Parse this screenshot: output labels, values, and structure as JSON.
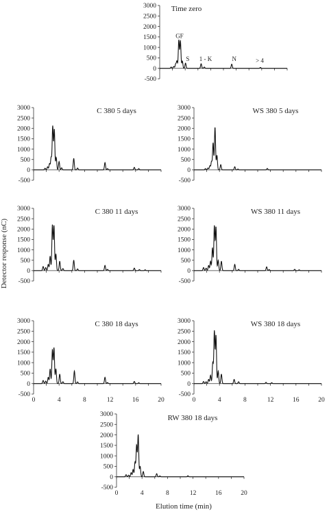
{
  "figure": {
    "y_axis_label": "Detector response (nC)",
    "x_axis_label": "Elution time (min)"
  },
  "chart_data": [
    {
      "type": "line",
      "title": "Time zero",
      "xlim": [
        0,
        20
      ],
      "ylim": [
        -500,
        3000
      ],
      "yticks": [
        -500,
        0,
        500,
        1000,
        1500,
        2000,
        2500,
        3000
      ],
      "xticks": [],
      "peak_labels": [
        {
          "text": "G",
          "x": 2.85,
          "y": 1450
        },
        {
          "text": "F",
          "x": 3.45,
          "y": 1450
        },
        {
          "text": "S",
          "x": 4.4,
          "y": 350
        },
        {
          "text": "1 - K",
          "x": 7.2,
          "y": 350
        },
        {
          "text": "N",
          "x": 11.7,
          "y": 350
        },
        {
          "text": "> 4",
          "x": 15.7,
          "y": 270
        }
      ],
      "series": [
        {
          "peaks": [
            [
              1.8,
              60
            ],
            [
              2.2,
              90
            ],
            [
              2.5,
              200
            ],
            [
              2.7,
              350
            ],
            [
              3.0,
              1350
            ],
            [
              3.25,
              1300
            ],
            [
              3.55,
              350
            ],
            [
              4.05,
              250
            ],
            [
              6.5,
              220
            ],
            [
              7.0,
              60
            ],
            [
              11.3,
              200
            ],
            [
              15.8,
              40
            ]
          ]
        }
      ]
    },
    {
      "type": "line",
      "title": "C 380 5 days",
      "xlim": [
        0,
        20
      ],
      "ylim": [
        -500,
        3000
      ],
      "yticks": [
        -500,
        0,
        500,
        1000,
        1500,
        2000,
        2500,
        3000
      ],
      "xticks": [],
      "series": [
        {
          "peaks": [
            [
              1.8,
              80
            ],
            [
              2.2,
              150
            ],
            [
              2.5,
              300
            ],
            [
              2.75,
              600
            ],
            [
              3.0,
              2100
            ],
            [
              3.25,
              1950
            ],
            [
              3.55,
              600
            ],
            [
              4.0,
              400
            ],
            [
              4.4,
              100
            ],
            [
              6.3,
              550
            ],
            [
              6.9,
              90
            ],
            [
              11.2,
              350
            ],
            [
              11.6,
              60
            ],
            [
              15.8,
              120
            ],
            [
              16.5,
              60
            ]
          ]
        }
      ]
    },
    {
      "type": "line",
      "title": "WS 380 5 days",
      "xlim": [
        0,
        20
      ],
      "ylim": [
        -500,
        3000
      ],
      "yticks": [
        -500,
        0,
        500,
        1000,
        1500,
        2000,
        2500,
        3000
      ],
      "xticks": [],
      "series": [
        {
          "peaks": [
            [
              1.8,
              60
            ],
            [
              2.2,
              90
            ],
            [
              2.5,
              200
            ],
            [
              2.75,
              400
            ],
            [
              3.0,
              1300
            ],
            [
              3.3,
              2050
            ],
            [
              3.6,
              700
            ],
            [
              4.2,
              250
            ],
            [
              6.4,
              150
            ],
            [
              6.9,
              40
            ],
            [
              11.5,
              70
            ]
          ]
        }
      ]
    },
    {
      "type": "line",
      "title": "C 380 11 days",
      "xlim": [
        0,
        20
      ],
      "ylim": [
        -500,
        3000
      ],
      "yticks": [
        -500,
        0,
        500,
        1000,
        1500,
        2000,
        2500,
        3000
      ],
      "xticks": [],
      "series": [
        {
          "peaks": [
            [
              1.5,
              200
            ],
            [
              1.9,
              150
            ],
            [
              2.3,
              300
            ],
            [
              2.6,
              700
            ],
            [
              2.95,
              2200
            ],
            [
              3.2,
              2150
            ],
            [
              3.5,
              800
            ],
            [
              4.1,
              450
            ],
            [
              4.6,
              100
            ],
            [
              6.3,
              500
            ],
            [
              6.9,
              80
            ],
            [
              11.2,
              250
            ],
            [
              11.6,
              60
            ],
            [
              15.8,
              120
            ],
            [
              16.6,
              50
            ],
            [
              17.5,
              40
            ]
          ]
        }
      ]
    },
    {
      "type": "line",
      "title": "WS 380 11 days",
      "xlim": [
        0,
        20
      ],
      "ylim": [
        -500,
        3000
      ],
      "yticks": [
        -500,
        0,
        500,
        1000,
        1500,
        2000,
        2500,
        3000
      ],
      "xticks": [],
      "series": [
        {
          "peaks": [
            [
              1.5,
              150
            ],
            [
              1.9,
              120
            ],
            [
              2.3,
              250
            ],
            [
              2.6,
              450
            ],
            [
              2.9,
              1100
            ],
            [
              3.2,
              2150
            ],
            [
              3.45,
              2100
            ],
            [
              3.8,
              500
            ],
            [
              4.3,
              450
            ],
            [
              6.4,
              300
            ],
            [
              7.0,
              60
            ],
            [
              11.4,
              180
            ],
            [
              11.8,
              50
            ],
            [
              15.8,
              60
            ],
            [
              16.5,
              40
            ]
          ]
        }
      ]
    },
    {
      "type": "line",
      "title": "C 380 18 days",
      "xlim": [
        0,
        20
      ],
      "ylim": [
        -500,
        3000
      ],
      "yticks": [
        -500,
        0,
        500,
        1000,
        1500,
        2000,
        2500,
        3000
      ],
      "xticks": [
        0,
        4,
        8,
        12,
        16,
        20
      ],
      "series": [
        {
          "peaks": [
            [
              1.5,
              150
            ],
            [
              1.9,
              120
            ],
            [
              2.3,
              300
            ],
            [
              2.6,
              700
            ],
            [
              2.95,
              1600
            ],
            [
              3.2,
              1700
            ],
            [
              3.5,
              700
            ],
            [
              4.1,
              450
            ],
            [
              4.6,
              90
            ],
            [
              6.4,
              600
            ],
            [
              6.9,
              80
            ],
            [
              11.2,
              300
            ],
            [
              11.6,
              50
            ],
            [
              15.8,
              100
            ],
            [
              16.5,
              40
            ]
          ]
        }
      ]
    },
    {
      "type": "line",
      "title": "WS 380 18 days",
      "xlim": [
        0,
        20
      ],
      "ylim": [
        -500,
        3000
      ],
      "yticks": [
        -500,
        0,
        500,
        1000,
        1500,
        2000,
        2500,
        3000
      ],
      "xticks": [
        0,
        4,
        8,
        12,
        16,
        20
      ],
      "series": [
        {
          "peaks": [
            [
              1.5,
              100
            ],
            [
              1.9,
              90
            ],
            [
              2.3,
              200
            ],
            [
              2.6,
              400
            ],
            [
              2.95,
              1000
            ],
            [
              3.2,
              2500
            ],
            [
              3.45,
              2300
            ],
            [
              3.8,
              600
            ],
            [
              4.3,
              450
            ],
            [
              6.3,
              200
            ],
            [
              7.0,
              90
            ],
            [
              11.3,
              60
            ],
            [
              12.2,
              40
            ]
          ]
        }
      ]
    },
    {
      "type": "line",
      "title": "RW 380 18 days",
      "xlim": [
        0,
        20
      ],
      "ylim": [
        -500,
        3000
      ],
      "yticks": [
        -500,
        0,
        500,
        1000,
        1500,
        2000,
        2500,
        3000
      ],
      "xticks": [
        0,
        4,
        8,
        12,
        16,
        20
      ],
      "series": [
        {
          "peaks": [
            [
              1.5,
              100
            ],
            [
              1.9,
              80
            ],
            [
              2.3,
              200
            ],
            [
              2.6,
              350
            ],
            [
              2.9,
              700
            ],
            [
              3.15,
              1500
            ],
            [
              3.4,
              2000
            ],
            [
              3.7,
              500
            ],
            [
              4.2,
              250
            ],
            [
              6.3,
              150
            ],
            [
              6.8,
              40
            ],
            [
              11.2,
              50
            ]
          ]
        }
      ]
    }
  ]
}
